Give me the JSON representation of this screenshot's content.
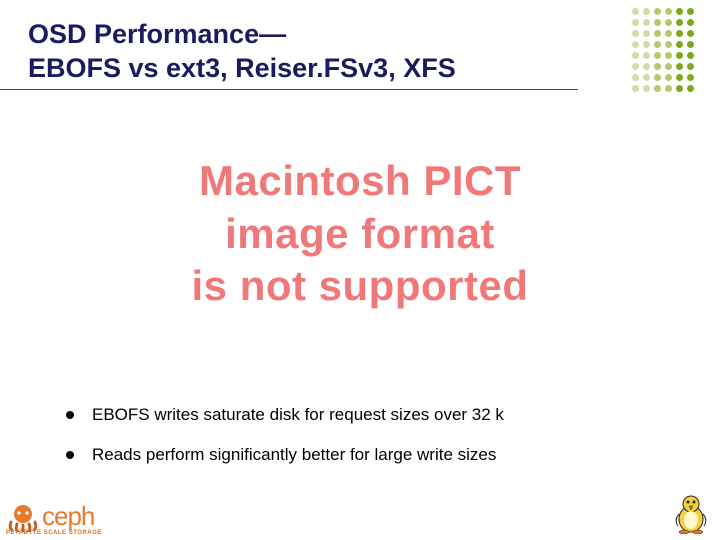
{
  "title": {
    "line1": "OSD Performance—",
    "line2": "EBOFS vs ext3, Reiser.FSv3, XFS",
    "color": "#1a1a5e",
    "fontsize": 27,
    "underline_color": "#444444"
  },
  "dot_grid": {
    "rows": 8,
    "cols": 6,
    "dot_size": 7,
    "column_colors": [
      "#d9d9a8",
      "#d9d9a8",
      "#b5c96a",
      "#b5c96a",
      "#7da81a",
      "#7da81a"
    ]
  },
  "center_message": {
    "line1": "Macintosh PICT",
    "line2": "image format",
    "line3": "is not supported",
    "color": "#f07878",
    "fontsize": 42
  },
  "bullets": [
    {
      "text": "EBOFS writes saturate disk for request sizes over 32 k"
    },
    {
      "text": "Reads perform significantly better for large write sizes"
    }
  ],
  "bullet_style": {
    "dot_color": "#000000",
    "dot_size": 8,
    "text_color": "#000000",
    "fontsize": 17
  },
  "logo": {
    "name": "ceph",
    "name_color": "#e67a2e",
    "tagline": "PETABYTE SCALE STORAGE",
    "tagline_color": "#dd6a1a",
    "icon_colors": {
      "body": "#e67a2e",
      "arms": "#c75a1a"
    }
  },
  "mascot": {
    "body": "#f2d13a",
    "beak": "#e07a1a",
    "feet": "#e07a1a",
    "outline": "#222222"
  }
}
